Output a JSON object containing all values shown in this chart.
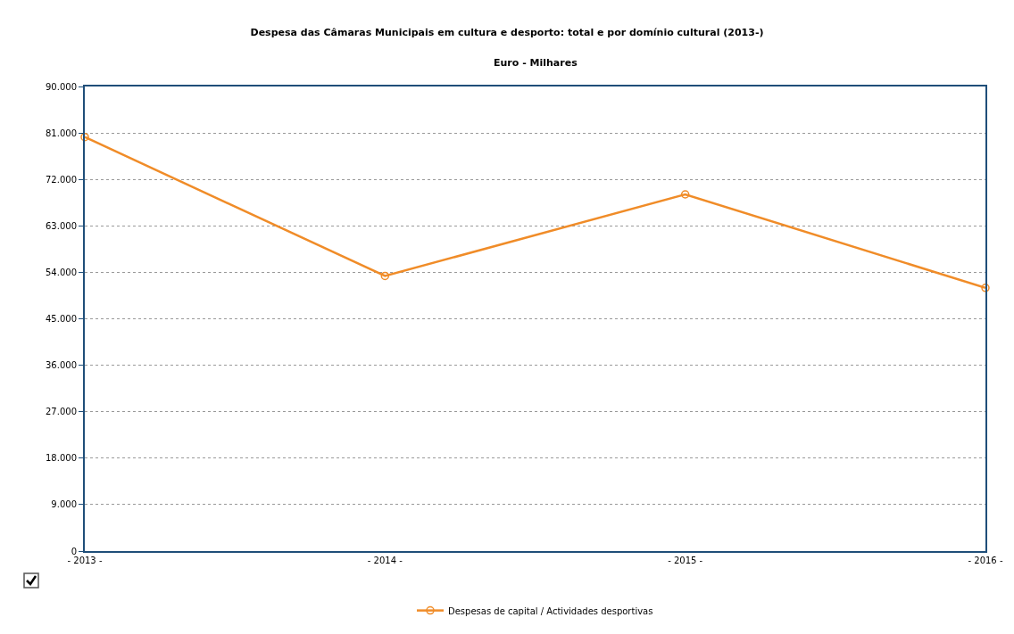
{
  "chart_data": {
    "type": "line",
    "title": "Despesa das Câmaras Municipais em cultura e desporto: total e por domínio cultural (2013-)",
    "subtitle": "Euro - Milhares",
    "categories": [
      "- 2013 -",
      "- 2014 -",
      "- 2015 -",
      "- 2016 -"
    ],
    "series": [
      {
        "name": "Despesas de capital / Actividades desportivas",
        "color": "#f08c28",
        "values": [
          80200,
          53300,
          69100,
          51000
        ]
      }
    ],
    "ylim": [
      0,
      90000
    ],
    "yticks": [
      {
        "value": 0,
        "label": "0"
      },
      {
        "value": 9000,
        "label": "9.000"
      },
      {
        "value": 18000,
        "label": "18.000"
      },
      {
        "value": 27000,
        "label": "27.000"
      },
      {
        "value": 36000,
        "label": "36.000"
      },
      {
        "value": 45000,
        "label": "45.000"
      },
      {
        "value": 54000,
        "label": "54.000"
      },
      {
        "value": 63000,
        "label": "63.000"
      },
      {
        "value": 72000,
        "label": "72.000"
      },
      {
        "value": 81000,
        "label": "81.000"
      },
      {
        "value": 90000,
        "label": "90.000"
      }
    ],
    "grid": "y",
    "legend": "bottom",
    "marker": "circle",
    "line_style": "solid"
  }
}
